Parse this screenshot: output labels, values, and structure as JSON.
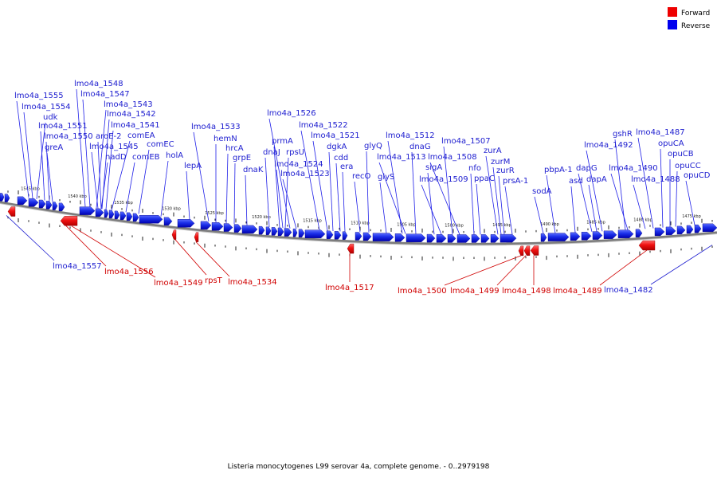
{
  "caption": "Listeria monocytogenes L99 serovar 4a, complete genome. - 0..2979198",
  "legend": {
    "forward_label": "Forward",
    "reverse_label": "Reverse",
    "forward_color": "#ee0000",
    "reverse_color": "#0000ee"
  },
  "ruler": [
    {
      "label": "1545 kbp"
    },
    {
      "label": "1540 kbp"
    },
    {
      "label": "1535 kbp"
    },
    {
      "label": "1530 kbp"
    },
    {
      "label": "1525 kbp"
    },
    {
      "label": "1520 kbp"
    },
    {
      "label": "1515 kbp"
    },
    {
      "label": "1510 kbp"
    },
    {
      "label": "1505 kbp"
    },
    {
      "label": "1500 kbp"
    },
    {
      "label": "1495 kbp"
    },
    {
      "label": "1490 kbp"
    },
    {
      "label": "1485 kbp"
    },
    {
      "label": "1480 kbp"
    },
    {
      "label": "1475 kbp"
    }
  ],
  "reverse_labels": [
    "lmo4a_1555",
    "lmo4a_1554",
    "udk",
    "lmo4a_1551",
    "lmo4a_1550",
    "greA",
    "lmo4a_1548",
    "lmo4a_1547",
    "lmo4a_1543",
    "lmo4a_1542",
    "lmo4a_1541",
    "aroE-2",
    "lmo4a_1545",
    "comEA",
    "nadD",
    "comEB",
    "comEC",
    "holA",
    "lepA",
    "lmo4a_1533",
    "hemN",
    "hrcA",
    "grpE",
    "dnaK",
    "lmo4a_1526",
    "prmA",
    "dnaJ",
    "rpsU",
    "lmo4a_1524",
    "lmo4a_1523",
    "lmo4a_1522",
    "lmo4a_1521",
    "dgkA",
    "cdd",
    "era",
    "recO",
    "glyQ",
    "glyS",
    "lmo4a_1512",
    "lmo4a_1513",
    "dnaG",
    "sigA",
    "lmo4a_1509",
    "lmo4a_1507",
    "lmo4a_1508",
    "nfo",
    "ppaC",
    "zurA",
    "zurM",
    "zurR",
    "prsA-1",
    "sodA",
    "pbpA-1",
    "asd",
    "dapG",
    "dapA",
    "lmo4a_1492",
    "gshR",
    "lmo4a_1490",
    "lmo4a_1488",
    "lmo4a_1487",
    "opuCA",
    "opuCB",
    "opuCC",
    "opuCD"
  ],
  "forward_labels": [
    "lmo4a_1557",
    "lmo4a_1556",
    "lmo4a_1549",
    "rpsT",
    "lmo4a_1534",
    "lmo4a_1517",
    "lmo4a_1500",
    "lmo4a_1499",
    "lmo4a_1498",
    "lmo4a_1489",
    "lmo4a_1482"
  ]
}
